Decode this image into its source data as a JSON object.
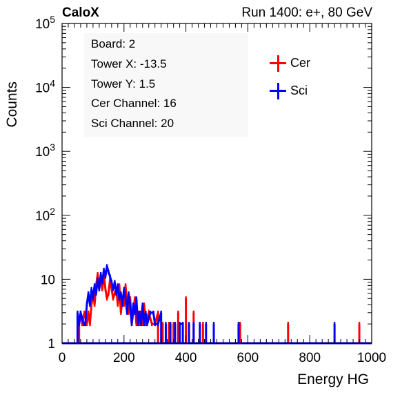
{
  "header": {
    "brand": "CaloX",
    "run_info": "Run 1400: e+, 80 GeV"
  },
  "info_box": {
    "lines": [
      "Board: 2",
      "Tower X: -13.5",
      "Tower Y: 1.5",
      "Cer Channel: 16",
      "Sci Channel: 20"
    ]
  },
  "legend": [
    {
      "label": "Cer",
      "color": "#ff0000"
    },
    {
      "label": "Sci",
      "color": "#0000ff"
    }
  ],
  "chart_data": {
    "type": "line",
    "title": "",
    "xlabel": "Energy HG",
    "ylabel": "Counts",
    "xlim": [
      0,
      1000
    ],
    "ylim": [
      1,
      100000
    ],
    "yscale": "log",
    "grid": false,
    "legend_position": "top-right",
    "x_ticks": [
      "0",
      "200",
      "400",
      "600",
      "800",
      "1000"
    ],
    "y_ticks": [
      "1",
      "10",
      "10^2",
      "10^3",
      "10^4",
      "10^5"
    ],
    "series": [
      {
        "name": "Cer",
        "color": "#ff0000",
        "points": [
          [
            55,
            2
          ],
          [
            60,
            3
          ],
          [
            65,
            2
          ],
          [
            72,
            3
          ],
          [
            80,
            2
          ],
          [
            85,
            3
          ],
          [
            90,
            2
          ],
          [
            95,
            4
          ],
          [
            100,
            6
          ],
          [
            105,
            4
          ],
          [
            110,
            8
          ],
          [
            115,
            12
          ],
          [
            120,
            7
          ],
          [
            125,
            10
          ],
          [
            130,
            7
          ],
          [
            135,
            12
          ],
          [
            140,
            7
          ],
          [
            145,
            5
          ],
          [
            150,
            6
          ],
          [
            155,
            10
          ],
          [
            160,
            7
          ],
          [
            165,
            5
          ],
          [
            170,
            6
          ],
          [
            175,
            7
          ],
          [
            180,
            4
          ],
          [
            185,
            8
          ],
          [
            190,
            3
          ],
          [
            195,
            5
          ],
          [
            200,
            4
          ],
          [
            205,
            8
          ],
          [
            210,
            4
          ],
          [
            215,
            3
          ],
          [
            220,
            5
          ],
          [
            225,
            2
          ],
          [
            230,
            3
          ],
          [
            235,
            5
          ],
          [
            240,
            2
          ],
          [
            245,
            3
          ],
          [
            250,
            2
          ],
          [
            255,
            3
          ],
          [
            260,
            2
          ],
          [
            265,
            4
          ],
          [
            270,
            2
          ],
          [
            280,
            3
          ],
          [
            290,
            2
          ],
          [
            300,
            2
          ],
          [
            310,
            3
          ],
          [
            325,
            2
          ],
          [
            345,
            2
          ],
          [
            360,
            2
          ],
          [
            375,
            3
          ],
          [
            400,
            5
          ],
          [
            425,
            3
          ],
          [
            455,
            2
          ],
          [
            575,
            2
          ],
          [
            730,
            2
          ],
          [
            960,
            2
          ]
        ]
      },
      {
        "name": "Sci",
        "color": "#0000ff",
        "points": [
          [
            50,
            3
          ],
          [
            55,
            2
          ],
          [
            60,
            3
          ],
          [
            70,
            2
          ],
          [
            75,
            2
          ],
          [
            80,
            4
          ],
          [
            85,
            6
          ],
          [
            90,
            4
          ],
          [
            95,
            7
          ],
          [
            100,
            5
          ],
          [
            105,
            8
          ],
          [
            110,
            6
          ],
          [
            115,
            10
          ],
          [
            120,
            7
          ],
          [
            125,
            12
          ],
          [
            130,
            9
          ],
          [
            135,
            14
          ],
          [
            140,
            11
          ],
          [
            145,
            16
          ],
          [
            150,
            13
          ],
          [
            155,
            11
          ],
          [
            160,
            9
          ],
          [
            165,
            7
          ],
          [
            170,
            9
          ],
          [
            175,
            6
          ],
          [
            180,
            8
          ],
          [
            185,
            5
          ],
          [
            190,
            6
          ],
          [
            195,
            4
          ],
          [
            200,
            7
          ],
          [
            205,
            5
          ],
          [
            210,
            3
          ],
          [
            215,
            6
          ],
          [
            220,
            4
          ],
          [
            225,
            2
          ],
          [
            230,
            4
          ],
          [
            235,
            3
          ],
          [
            240,
            5
          ],
          [
            245,
            2
          ],
          [
            250,
            3
          ],
          [
            255,
            2
          ],
          [
            260,
            4
          ],
          [
            265,
            2
          ],
          [
            270,
            3
          ],
          [
            275,
            2
          ],
          [
            285,
            3
          ],
          [
            295,
            3
          ],
          [
            300,
            2
          ],
          [
            310,
            2
          ],
          [
            320,
            3
          ],
          [
            335,
            2
          ],
          [
            350,
            2
          ],
          [
            365,
            2
          ],
          [
            380,
            2
          ],
          [
            390,
            2
          ],
          [
            410,
            2
          ],
          [
            425,
            2
          ],
          [
            445,
            2
          ],
          [
            465,
            2
          ],
          [
            490,
            2
          ],
          [
            570,
            2
          ],
          [
            880,
            2
          ]
        ]
      }
    ]
  }
}
